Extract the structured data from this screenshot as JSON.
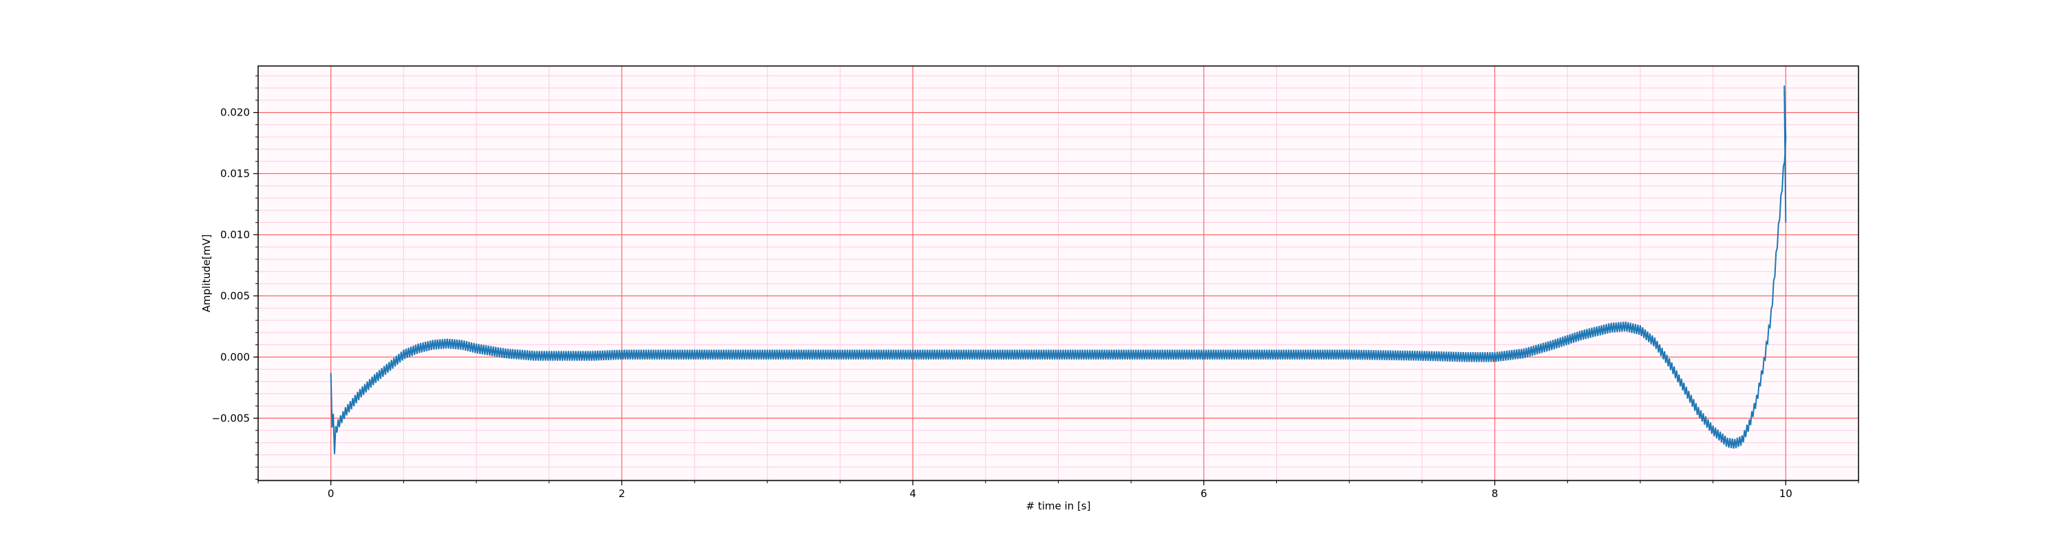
{
  "chart_data": {
    "type": "line",
    "title": "",
    "xlabel": "# time in [s]",
    "ylabel": "Amplitude[mV]",
    "xlim": [
      -0.5,
      10.5
    ],
    "ylim": [
      -0.0101,
      0.0238
    ],
    "x_ticks": [
      0,
      2,
      4,
      6,
      8,
      10
    ],
    "x_tick_labels": [
      "0",
      "2",
      "4",
      "6",
      "8",
      "10"
    ],
    "y_ticks": [
      -0.005,
      0.0,
      0.005,
      0.01,
      0.015,
      0.02
    ],
    "y_tick_labels": [
      "−0.005",
      "0.000",
      "0.005",
      "0.010",
      "0.015",
      "0.020"
    ],
    "grid": true,
    "colors": {
      "line": "#1f77b4",
      "major_grid": "#ff6666",
      "minor_grid": "#ffc9e3",
      "plot_background": "#fff9fc"
    },
    "series": [
      {
        "x": [
          0.0,
          0.02,
          0.05,
          0.1,
          0.2,
          0.3,
          0.4,
          0.5,
          0.6,
          0.7,
          0.8,
          0.9,
          1.0,
          1.2,
          1.4,
          1.6,
          1.8,
          2.0,
          2.5,
          3.0,
          3.5,
          4.0,
          4.5,
          5.0,
          5.5,
          6.0,
          6.5,
          7.0,
          7.5,
          7.8,
          8.0,
          8.2,
          8.4,
          8.6,
          8.8,
          8.9,
          9.0,
          9.1,
          9.2,
          9.3,
          9.4,
          9.5,
          9.6,
          9.65,
          9.7,
          9.75,
          9.8,
          9.85,
          9.9,
          9.95,
          10.0
        ],
        "y": [
          -0.0025,
          -0.0065,
          -0.0055,
          -0.0045,
          -0.003,
          -0.0018,
          -0.0008,
          0.0002,
          0.0007,
          0.001,
          0.0011,
          0.001,
          0.0007,
          0.0003,
          0.0001,
          0.0001,
          0.0001,
          0.0002,
          0.0002,
          0.0002,
          0.0002,
          0.0002,
          0.0002,
          0.0002,
          0.0002,
          0.0002,
          0.0002,
          0.0002,
          0.0001,
          0.0,
          0.0,
          0.0003,
          0.001,
          0.0018,
          0.0024,
          0.0025,
          0.0022,
          0.0012,
          -0.0005,
          -0.0025,
          -0.0045,
          -0.006,
          -0.007,
          -0.0071,
          -0.0068,
          -0.0055,
          -0.0035,
          -0.0005,
          0.0035,
          0.0105,
          0.0175
        ],
        "oscillation_amplitude": 0.0008
      }
    ]
  }
}
